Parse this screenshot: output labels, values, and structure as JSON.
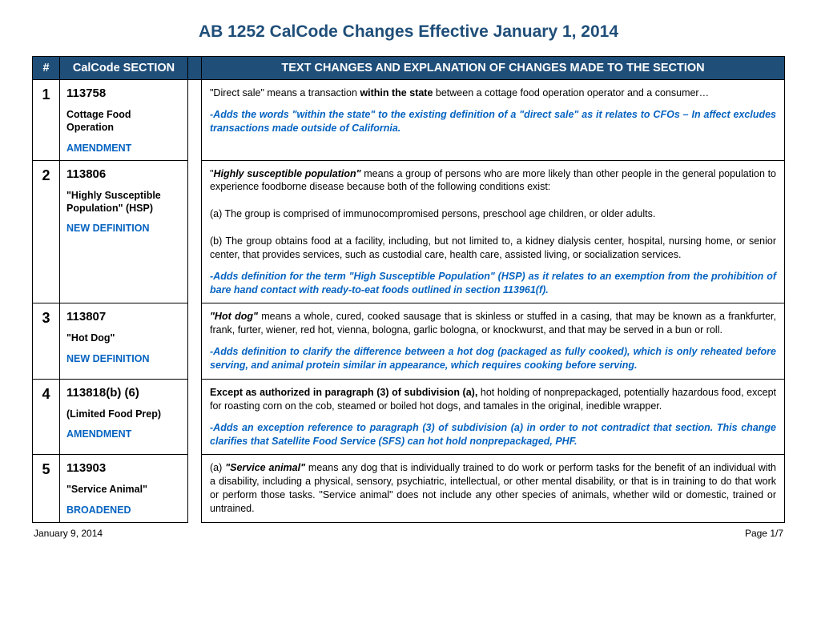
{
  "title": "AB 1252  CalCode Changes Effective January 1, 2014",
  "header": {
    "num": "#",
    "section": "CalCode SECTION",
    "text": "TEXT CHANGES AND EXPLANATION OF CHANGES MADE TO THE SECTION"
  },
  "rows": [
    {
      "num": "1",
      "code": "113758",
      "topic": "Cottage Food Operation",
      "tag": "AMENDMENT",
      "body": "\"Direct sale\" means a transaction <b>within the state</b> between a cottage food operation operator and a consumer…",
      "note": "-Adds the words \"within the state\" to the existing definition of a \"direct sale\" as it relates to CFOs – In affect excludes transactions made outside of California."
    },
    {
      "num": "2",
      "code": "113806",
      "topic": "\"Highly Susceptible Population\" (HSP)",
      "tag": "NEW DEFINITION",
      "body": "\"<b><i>Highly susceptible population\"</i></b> means a group of persons who are more likely than other people in the general population to experience foodborne disease because both of the following conditions exist:<br><br>(a) The group is comprised of immunocompromised persons, preschool age children, or older adults.<br><br>(b) The group obtains food at a facility, including, but not limited to, a kidney dialysis center, hospital, nursing home, or senior center, that provides services, such as custodial care, health care, assisted living, or socialization services.",
      "note": "-Adds definition for the term \"High Susceptible Population\" (HSP) as it relates to an exemption from the prohibition of bare hand contact with ready-to-eat foods outlined in section 113961(f)."
    },
    {
      "num": "3",
      "code": "113807",
      "topic": " \"Hot Dog\"",
      "tag": "NEW DEFINITION",
      "body": "<b><i>\"Hot dog\"</i></b> means a whole, cured, cooked sausage that is skinless or stuffed in a casing, that may be known as a frankfurter, frank, furter, wiener, red hot, vienna, bologna, garlic bologna, or knockwurst, and that may be served in a bun or roll.",
      "note": "-Adds definition to clarify the difference between a hot dog (packaged as fully cooked), which is only reheated before serving, and animal protein similar in appearance, which requires cooking before serving."
    },
    {
      "num": "4",
      "code": "113818(b) (6)",
      "topic": "(Limited Food Prep)",
      "tag": "AMENDMENT",
      "body": "<b>Except as authorized in paragraph (3) of subdivision (a),</b> hot holding of nonprepackaged, potentially hazardous food, except for roasting corn on the cob, steamed or boiled hot dogs, and tamales in the original, inedible wrapper.",
      "note": "-Adds an exception reference to paragraph (3) of subdivision (a) in order to not contradict that section. This change clarifies that  Satellite Food Service (SFS) can hot hold nonprepackaged, PHF."
    },
    {
      "num": "5",
      "code": "113903",
      "topic": "\"Service Animal\"",
      "tag": "BROADENED",
      "body": "(a) <b><i>\"Service animal\"</i></b> means any dog that is individually trained to do work or perform tasks for the benefit of an individual with a disability, including a physical, sensory, psychiatric, intellectual, or other mental disability, or that is in training to do that work or perform those tasks. \"Service animal\" does not include any other species of animals, whether wild or domestic, trained or untrained.",
      "note": ""
    }
  ],
  "footer": {
    "date": "January 9, 2014",
    "page": "Page 1/7"
  },
  "colors": {
    "brandBlue": "#1f4e79",
    "linkBlue": "#0563c1",
    "black": "#000000",
    "white": "#ffffff"
  }
}
